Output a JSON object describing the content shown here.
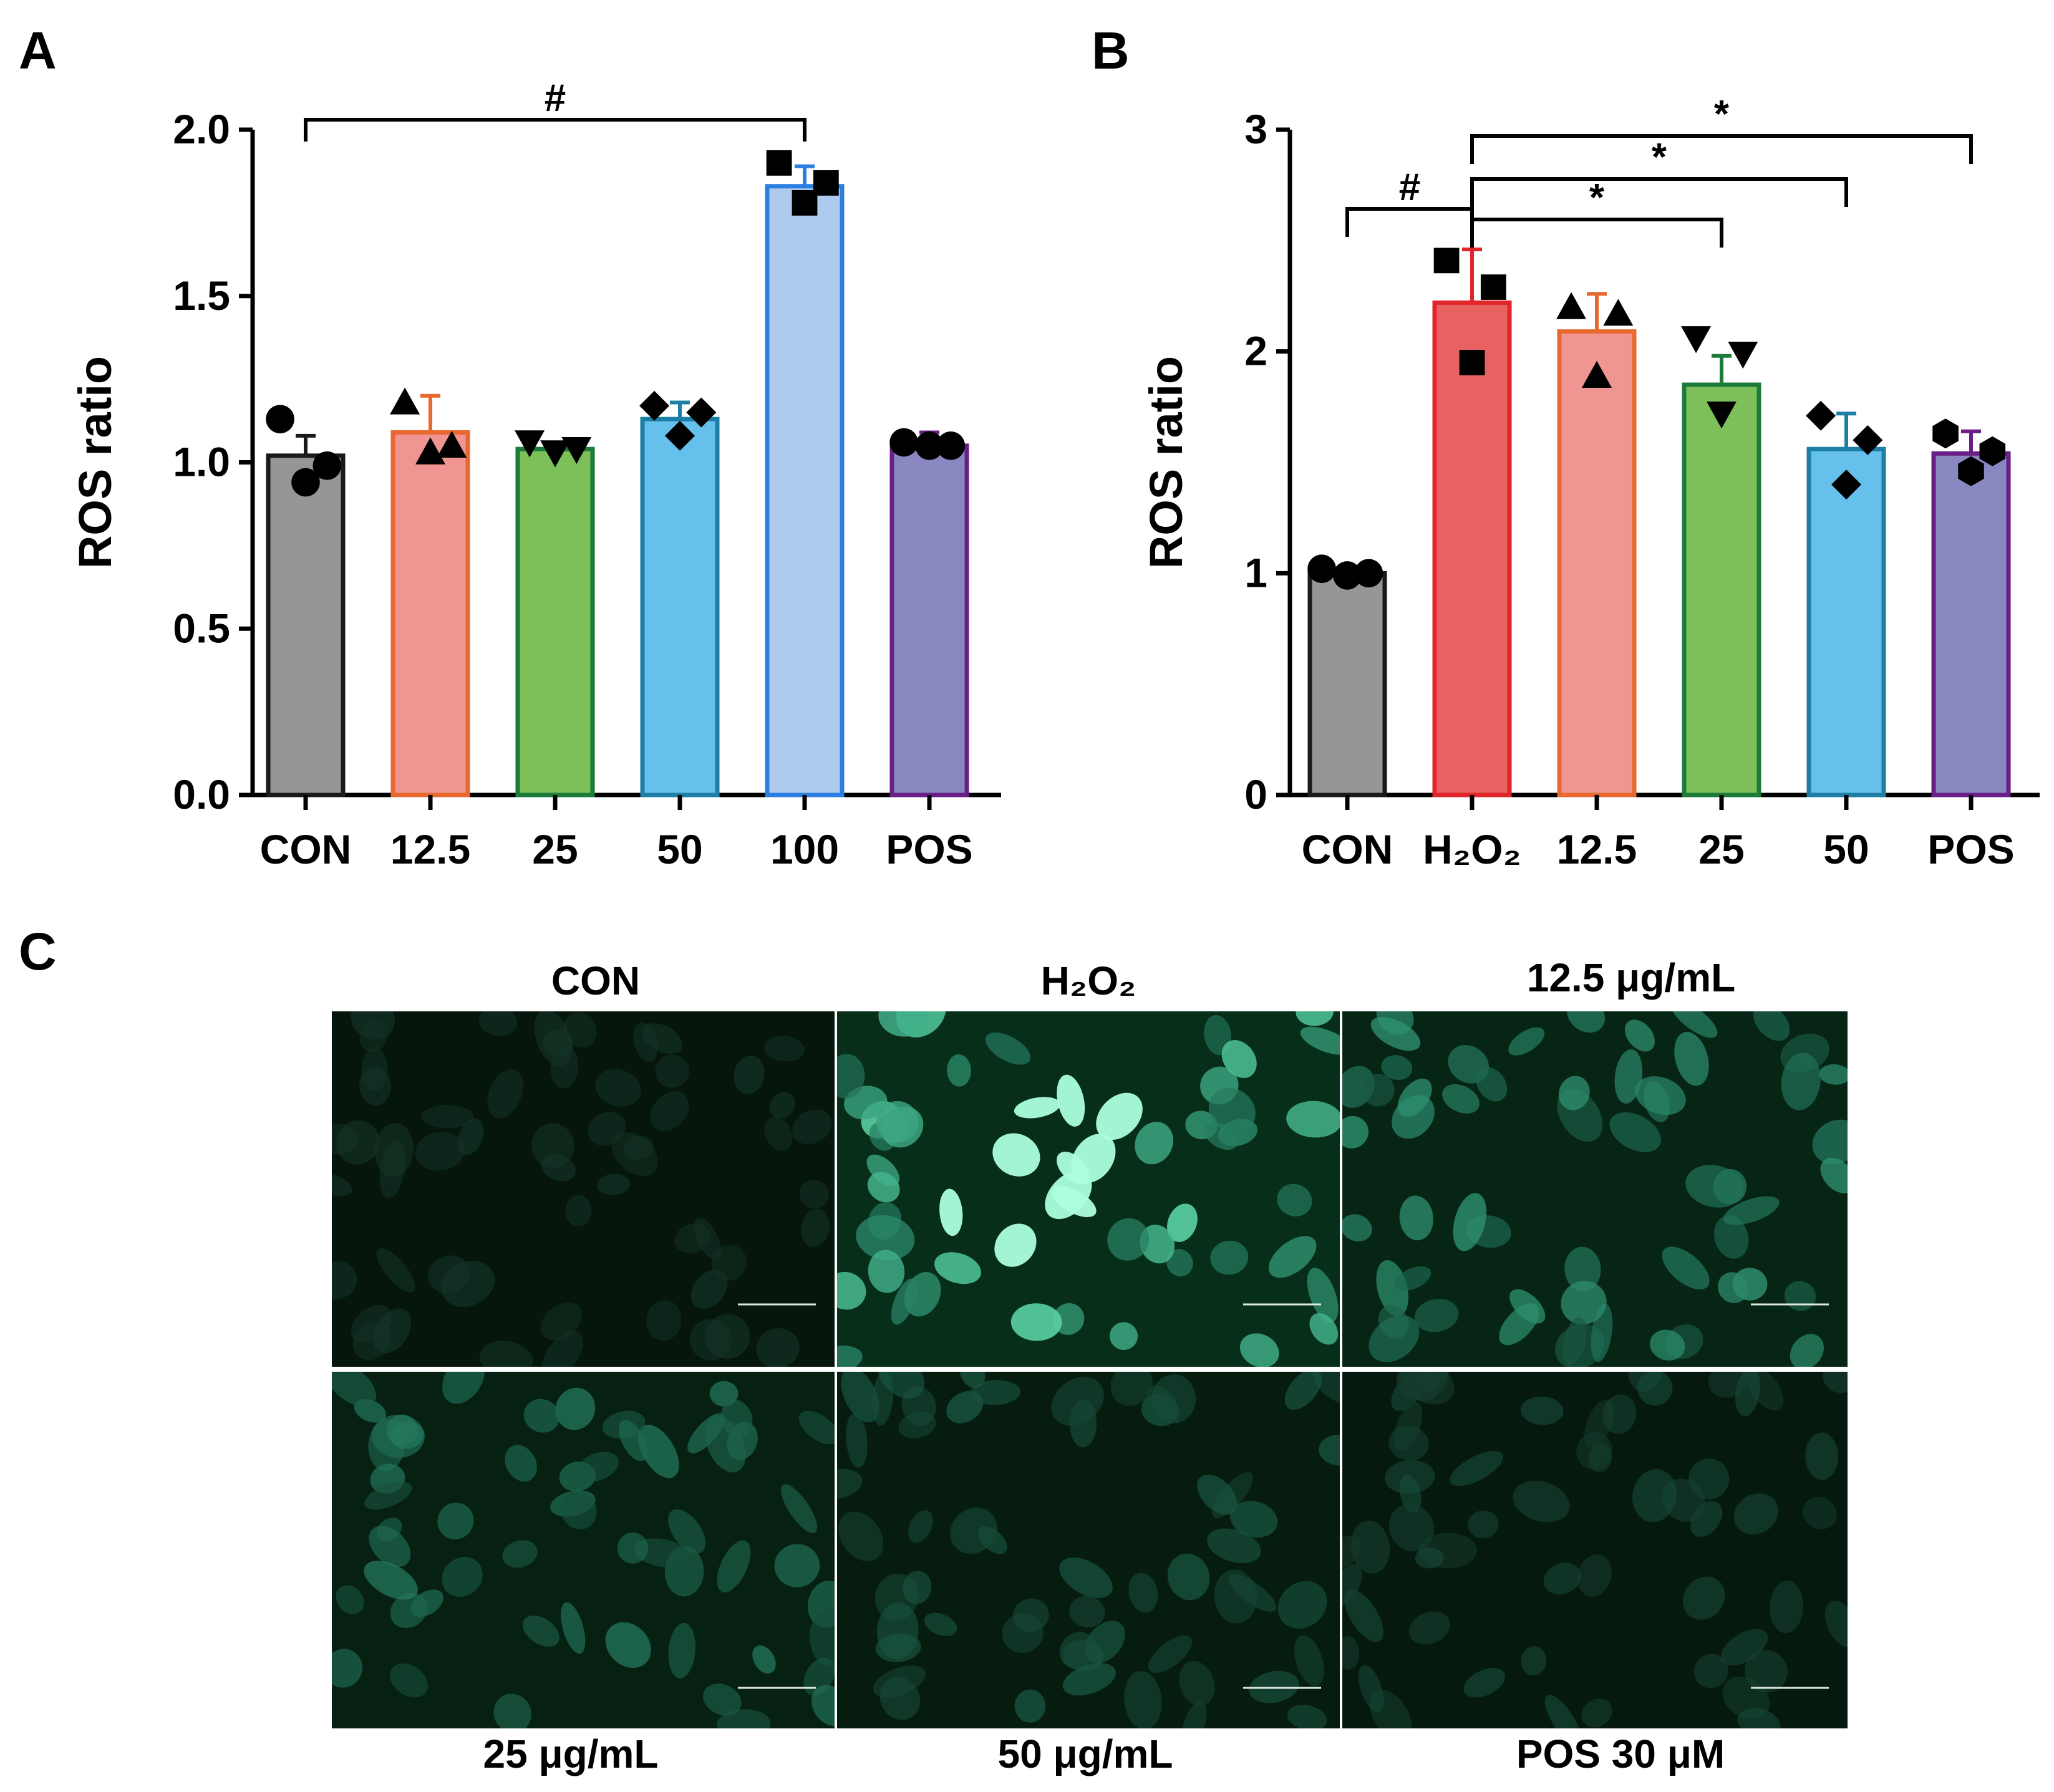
{
  "panels": {
    "a": "A",
    "b": "B",
    "c": "C"
  },
  "chart_data": [
    {
      "type": "bar",
      "panel": "A",
      "ylabel": "ROS ratio",
      "ylim": [
        0,
        2.0
      ],
      "yticks": [
        0.0,
        0.5,
        1.0,
        1.5,
        2.0
      ],
      "ytick_labels": [
        "0.0",
        "0.5",
        "1.0",
        "1.5",
        "2.0"
      ],
      "categories": [
        "CON",
        "12.5",
        "25",
        "50",
        "100",
        "POS"
      ],
      "values": [
        1.02,
        1.09,
        1.04,
        1.13,
        1.83,
        1.05
      ],
      "errors": [
        0.06,
        0.11,
        0.02,
        0.05,
        0.06,
        0.04
      ],
      "points": [
        [
          1.13,
          0.99,
          0.94
        ],
        [
          1.18,
          1.05,
          1.03
        ],
        [
          1.06,
          1.04,
          1.03
        ],
        [
          1.17,
          1.15,
          1.08
        ],
        [
          1.9,
          1.84,
          1.78
        ],
        [
          1.06,
          1.05,
          1.05
        ]
      ],
      "markers": [
        "circle",
        "triangle",
        "triangle-down",
        "diamond",
        "square",
        "circle"
      ],
      "colors": [
        "#969696",
        "#F09591",
        "#7DC05A",
        "#66C0EC",
        "#AECBEE",
        "#8A88C0"
      ],
      "edge_colors": [
        "#1A1A1A",
        "#E8692F",
        "#1C7A3A",
        "#1E7FA6",
        "#2C7FE0",
        "#6A1F86"
      ],
      "comparisons": [
        {
          "from": 0,
          "to": 4,
          "label": "#"
        }
      ]
    },
    {
      "type": "bar",
      "panel": "B",
      "ylabel": "ROS ratio",
      "ylim": [
        0,
        3
      ],
      "yticks": [
        0,
        1,
        2,
        3
      ],
      "ytick_labels": [
        "0",
        "1",
        "2",
        "3"
      ],
      "categories": [
        "CON",
        "H₂O₂",
        "12.5",
        "25",
        "50",
        "POS"
      ],
      "values": [
        1.0,
        2.22,
        2.09,
        1.85,
        1.56,
        1.54
      ],
      "errors": [
        0.02,
        0.24,
        0.17,
        0.13,
        0.16,
        0.1
      ],
      "points": [
        [
          1.02,
          1.0,
          0.99
        ],
        [
          2.41,
          2.29,
          1.95
        ],
        [
          2.2,
          2.17,
          1.89
        ],
        [
          2.06,
          1.99,
          1.72
        ],
        [
          1.71,
          1.6,
          1.4
        ],
        [
          1.63,
          1.55,
          1.46
        ]
      ],
      "markers": [
        "circle",
        "square",
        "triangle",
        "triangle-down",
        "diamond",
        "hexagon"
      ],
      "colors": [
        "#969696",
        "#E96262",
        "#F09591",
        "#7DC05A",
        "#66C0EC",
        "#8A88C0"
      ],
      "edge_colors": [
        "#1A1A1A",
        "#E0262A",
        "#E8692F",
        "#1C7A3A",
        "#1E7FA6",
        "#6A1F86"
      ],
      "comparisons": [
        {
          "from": 0,
          "to": 1,
          "label": "#"
        },
        {
          "from": 1,
          "to": 3,
          "label": "*"
        },
        {
          "from": 1,
          "to": 4,
          "label": "*"
        },
        {
          "from": 1,
          "to": 5,
          "label": "*"
        }
      ]
    }
  ],
  "images": {
    "titles_top": [
      "CON",
      "H₂O₂",
      "12.5 μg/mL"
    ],
    "titles_bottom": [
      "25 μg/mL",
      "50 μg/mL",
      "POS 30 μM"
    ],
    "brightness": [
      0.08,
      0.85,
      0.55,
      0.42,
      0.28,
      0.18
    ]
  }
}
